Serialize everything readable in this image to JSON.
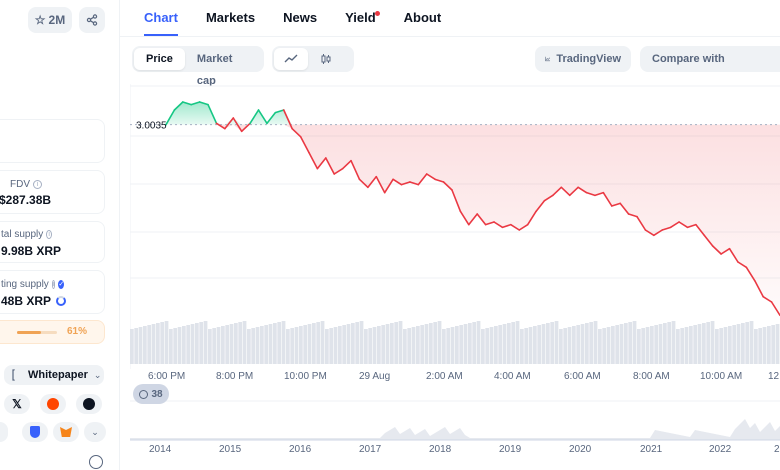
{
  "left": {
    "watch_count": "2M",
    "fdv": {
      "label": "FDV",
      "value": "$287.38B"
    },
    "total_supply": {
      "label": "tal supply",
      "value": "9.98B XRP"
    },
    "circulating_supply": {
      "label": "ting supply",
      "value": "48B XRP"
    },
    "progress": {
      "value": 0.61,
      "label": "61%"
    },
    "whitepaper_label": "Whitepaper"
  },
  "tabs": [
    {
      "label": "Chart",
      "active": true
    },
    {
      "label": "Markets"
    },
    {
      "label": "News"
    },
    {
      "label": "Yield"
    },
    {
      "label": "About"
    }
  ],
  "toolbar": {
    "price_label": "Price",
    "marketcap_label": "Market cap",
    "tradingview_label": "TradingView",
    "compare_label": "Compare with"
  },
  "chart": {
    "open_label": "3.0035",
    "x_ticks": [
      "6:00 PM",
      "8:00 PM",
      "10:00 PM",
      "29 Aug",
      "2:00 AM",
      "4:00 AM",
      "6:00 AM",
      "8:00 AM",
      "10:00 AM",
      "12"
    ],
    "badge": "38",
    "years": [
      "2014",
      "2015",
      "2016",
      "2017",
      "2018",
      "2019",
      "2020",
      "2021",
      "2022",
      "2"
    ],
    "colors": {
      "up": "#16c784",
      "down": "#ea3943"
    }
  },
  "chart_data": {
    "type": "area",
    "title": "",
    "xlabel": "",
    "ylabel": "",
    "baseline": 3.0035,
    "x_range": [
      "6:00 PM",
      "12"
    ],
    "y_range_px_note": "",
    "series": [
      {
        "values": [
          3.0035,
          3.009,
          3.012,
          3.011,
          3.012,
          3.011,
          3.004,
          3.002,
          3.006,
          3.001,
          3.004,
          3.009,
          3.004,
          3.008,
          3.009,
          3.002,
          2.999,
          2.993,
          2.987,
          2.991,
          2.985,
          2.987,
          2.99,
          2.983,
          2.98,
          2.984,
          2.978,
          2.983,
          2.981,
          2.982,
          2.981,
          2.985,
          2.983,
          2.982,
          2.979,
          2.971,
          2.966,
          2.97,
          2.966,
          2.967,
          2.965,
          2.966,
          2.964,
          2.966,
          2.971,
          2.975,
          2.977,
          2.98,
          2.977,
          2.98,
          2.978,
          2.977,
          2.978,
          2.973,
          2.974,
          2.97,
          2.969,
          2.964,
          2.962,
          2.964,
          2.965,
          2.967,
          2.965,
          2.966,
          2.962,
          2.958,
          2.955,
          2.957,
          2.952,
          2.95,
          2.945,
          2.939,
          2.937,
          2.932
        ]
      }
    ]
  }
}
